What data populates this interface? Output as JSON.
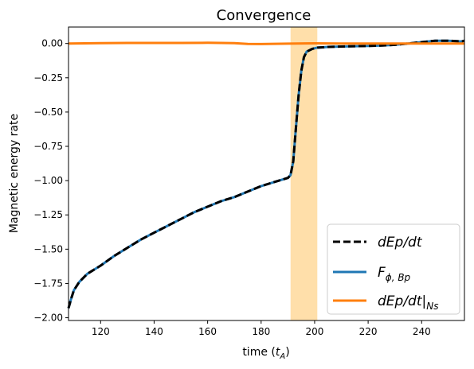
{
  "chart_data": {
    "type": "line",
    "title": "Convergence",
    "xlabel_main": "time (",
    "xlabel_var": "t",
    "xlabel_sub": "A",
    "xlabel_close": ")",
    "ylabel": "Magnetic energy rate",
    "xlim": [
      108,
      256
    ],
    "ylim": [
      -2.02,
      0.12
    ],
    "x_ticks": [
      120,
      140,
      160,
      180,
      200,
      220,
      240
    ],
    "x_tick_labels": [
      "120",
      "140",
      "160",
      "180",
      "200",
      "220",
      "240"
    ],
    "y_ticks": [
      0.0,
      -0.25,
      -0.5,
      -0.75,
      -1.0,
      -1.25,
      -1.5,
      -1.75,
      -2.0
    ],
    "y_tick_labels": [
      "0.00",
      "−0.25",
      "−0.50",
      "−0.75",
      "−1.00",
      "−1.25",
      "−1.50",
      "−1.75",
      "−2.00"
    ],
    "highlight_span": {
      "x0": 191,
      "x1": 201,
      "color": "#ffdfaa"
    },
    "legend": {
      "position": "lower-right"
    },
    "series": [
      {
        "name": "dEp/dt",
        "name_main": "dEp/dt",
        "name_sub": "",
        "style": "dashed",
        "color": "#000000",
        "x": [
          108,
          109,
          110,
          112,
          115,
          120,
          125,
          130,
          135,
          140,
          145,
          150,
          155,
          160,
          165,
          170,
          175,
          180,
          185,
          190,
          191,
          192,
          193,
          194,
          195,
          196,
          197,
          198,
          199,
          200,
          201,
          203,
          205,
          210,
          215,
          220,
          225,
          230,
          235,
          240,
          245,
          250,
          255,
          256
        ],
        "y": [
          -1.93,
          -1.86,
          -1.8,
          -1.74,
          -1.68,
          -1.62,
          -1.55,
          -1.49,
          -1.43,
          -1.38,
          -1.33,
          -1.28,
          -1.23,
          -1.19,
          -1.15,
          -1.12,
          -1.08,
          -1.04,
          -1.01,
          -0.98,
          -0.96,
          -0.86,
          -0.62,
          -0.38,
          -0.2,
          -0.1,
          -0.06,
          -0.05,
          -0.04,
          -0.035,
          -0.03,
          -0.028,
          -0.025,
          -0.022,
          -0.02,
          -0.018,
          -0.015,
          -0.01,
          0.0,
          0.01,
          0.02,
          0.02,
          0.015,
          0.02
        ]
      },
      {
        "name": "F_{phi,Bp}",
        "name_main": "F",
        "name_sub": "ϕ, Bp",
        "style": "solid",
        "color": "#1f77b4",
        "x": [
          108,
          109,
          110,
          112,
          115,
          120,
          125,
          130,
          135,
          140,
          145,
          150,
          155,
          160,
          165,
          170,
          175,
          180,
          185,
          190,
          191,
          192,
          193,
          194,
          195,
          196,
          197,
          198,
          199,
          200,
          201,
          203,
          205,
          210,
          215,
          220,
          225,
          230,
          235,
          240,
          245,
          250,
          255,
          256
        ],
        "y": [
          -1.93,
          -1.86,
          -1.8,
          -1.74,
          -1.68,
          -1.62,
          -1.55,
          -1.49,
          -1.43,
          -1.38,
          -1.33,
          -1.28,
          -1.23,
          -1.19,
          -1.15,
          -1.12,
          -1.08,
          -1.04,
          -1.01,
          -0.98,
          -0.96,
          -0.86,
          -0.62,
          -0.38,
          -0.2,
          -0.1,
          -0.06,
          -0.05,
          -0.04,
          -0.035,
          -0.03,
          -0.028,
          -0.025,
          -0.022,
          -0.02,
          -0.018,
          -0.015,
          -0.01,
          0.0,
          0.01,
          0.02,
          0.02,
          0.015,
          0.02
        ]
      },
      {
        "name": "dEp/dt|Ns",
        "name_main": "dEp/dt|",
        "name_sub": "Ns",
        "style": "solid",
        "color": "#ff7f0e",
        "x": [
          108,
          120,
          130,
          140,
          150,
          160,
          165,
          170,
          175,
          180,
          190,
          200,
          210,
          220,
          230,
          240,
          250,
          256
        ],
        "y": [
          0.0,
          0.003,
          0.004,
          0.004,
          0.004,
          0.005,
          0.004,
          0.002,
          -0.003,
          -0.004,
          -0.001,
          0.001,
          0.0,
          0.0,
          0.0,
          0.0,
          0.0,
          0.0
        ]
      }
    ]
  }
}
